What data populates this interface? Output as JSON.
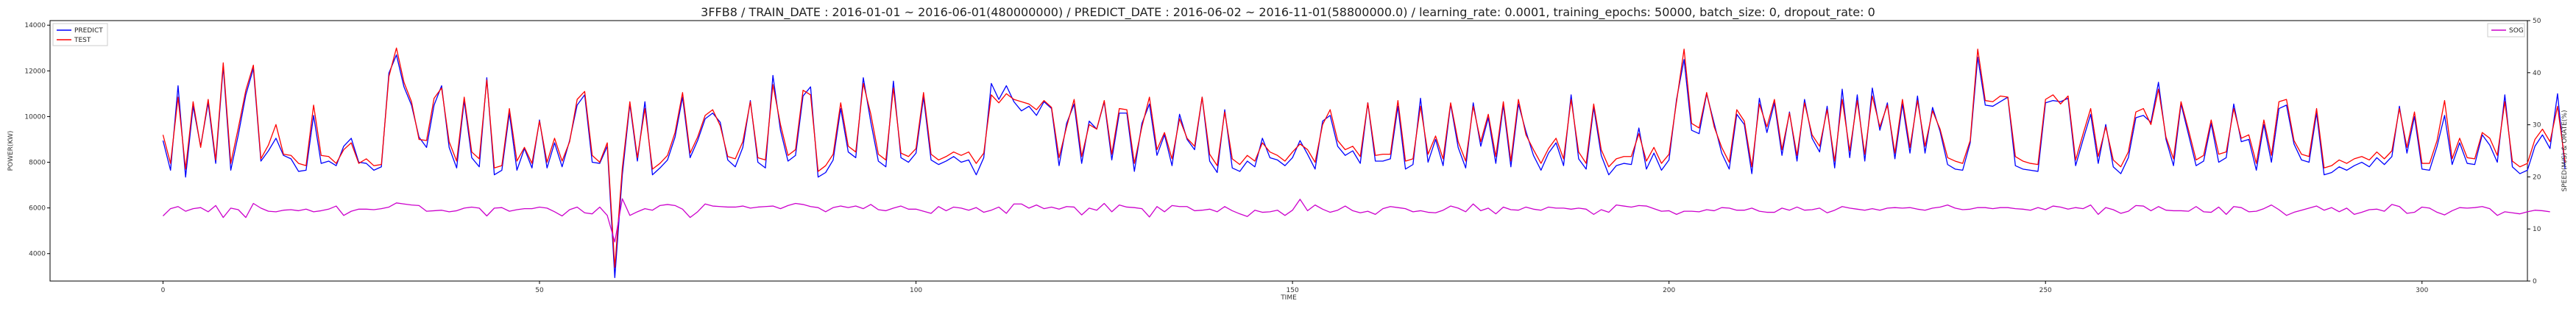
{
  "chart_data": {
    "type": "line",
    "title": "3FFB8 / TRAIN_DATE : 2016-01-01 ~ 2016-06-01(480000000) / PREDICT_DATE : 2016-06-02 ~ 2016-11-01(58800000.0) / learning_rate: 0.0001, training_epochs: 50000, batch_size: 0, dropout_rate: 0",
    "xlabel": "TIME",
    "ylabel_left": "POWER(KW)",
    "ylabel_right": "SPEED(M/S) & ORATE(%)",
    "xlim": [
      -15,
      314
    ],
    "ylim_left": [
      2800,
      14200
    ],
    "ylim_right": [
      0,
      50
    ],
    "x_ticks": [
      "0",
      "50",
      "100",
      "150",
      "200",
      "250",
      "300"
    ],
    "y_ticks_left": [
      "4000",
      "6000",
      "8000",
      "10000",
      "12000",
      "14000"
    ],
    "y_ticks_right": [
      "0",
      "10",
      "20",
      "30",
      "40",
      "50"
    ],
    "grid": false,
    "legend_left": {
      "placement": "top-left",
      "entries": [
        "PREDICT",
        "TEST"
      ]
    },
    "legend_right": {
      "placement": "top-right",
      "entries": [
        "SOG"
      ]
    },
    "colors": {
      "PREDICT": "#0000ff",
      "TEST": "#ff0000",
      "SOG": "#cc00cc"
    },
    "series": [
      {
        "name": "PREDICT",
        "axis": "left",
        "color": "#0000ff",
        "values": [
          8950,
          7650,
          11350,
          7350,
          10450,
          8700,
          10600,
          7950,
          12200,
          7650,
          9200,
          10950,
          12100,
          8050,
          8500,
          9050,
          8300,
          8150,
          7600,
          7650,
          10050,
          7950,
          8050,
          7850,
          8700,
          9050,
          8000,
          7950,
          7650,
          7800,
          11900,
          12700,
          11300,
          10500,
          9100,
          8650,
          10500,
          11350,
          8650,
          7750,
          10700,
          8200,
          7800,
          11700,
          7450,
          7650,
          10150,
          7650,
          8600,
          7750,
          9850,
          7750,
          8850,
          7800,
          8950,
          10500,
          10950,
          8000,
          7950,
          8700,
          2950,
          7450,
          10550,
          8050,
          10650,
          7450,
          7750,
          8100,
          9100,
          10850,
          8200,
          8950,
          9900,
          10150,
          9750,
          8100,
          7800,
          8650,
          10700,
          8000,
          7750,
          11800,
          9400,
          8050,
          8300,
          10900,
          11300,
          7350,
          7550,
          8100,
          10350,
          8450,
          8200,
          11700,
          9750,
          8050,
          7800,
          11550,
          8200,
          8000,
          8400,
          10850,
          8100,
          7900,
          8050,
          8250,
          8000,
          8100,
          7450,
          8200,
          11450,
          10750,
          11350,
          10650,
          10250,
          10450,
          10050,
          10650,
          10350,
          7850,
          9700,
          10550,
          7950,
          9800,
          9450,
          10650,
          8100,
          10150,
          10150,
          7600,
          9700,
          10550,
          8300,
          9200,
          7850,
          10100,
          9000,
          8550,
          10850,
          8050,
          7550,
          10300,
          7750,
          7600,
          8050,
          7800,
          9050,
          8200,
          8100,
          7850,
          8200,
          8950,
          8350,
          7700,
          9800,
          10050,
          8700,
          8300,
          8500,
          7950,
          10600,
          8050,
          8050,
          8150,
          10450,
          7700,
          7900,
          10800,
          8000,
          9000,
          7850,
          10550,
          8650,
          7750,
          10600,
          8700,
          9950,
          7950,
          10500,
          7800,
          10550,
          9350,
          8300,
          7650,
          8400,
          8850,
          7850,
          10950,
          8150,
          7700,
          10400,
          8300,
          7450,
          7850,
          7950,
          7900,
          9500,
          7700,
          8400,
          7650,
          8100,
          10750,
          12500,
          9400,
          9250,
          11000,
          9700,
          8400,
          7700,
          10100,
          9650,
          7500,
          10800,
          9300,
          10600,
          8300,
          10200,
          8050,
          10750,
          9050,
          8450,
          10450,
          7750,
          11200,
          8200,
          10950,
          8050,
          11250,
          9400,
          10600,
          8150,
          10550,
          8400,
          10900,
          8400,
          10400,
          9350,
          7900,
          7700,
          7650,
          8850,
          12600,
          10500,
          10450,
          10650,
          10850,
          7850,
          7700,
          7650,
          7600,
          10600,
          10700,
          10650,
          10800,
          7850,
          9000,
          10100,
          7950,
          9650,
          7800,
          7500,
          8200,
          9950,
          10050,
          9750,
          11500,
          9000,
          7850,
          10550,
          9200,
          7850,
          8050,
          9700,
          8000,
          8200,
          10550,
          8900,
          9000,
          7650,
          9650,
          8000,
          10350,
          10500,
          8800,
          8100,
          8000,
          10150,
          7450,
          7550,
          7800,
          7650,
          7850,
          8000,
          7800,
          8200,
          7900,
          8250,
          10450,
          8400,
          10000,
          7700,
          7650,
          8700,
          10050,
          7900,
          8850,
          7950,
          7900,
          9200,
          8750,
          8000,
          10950,
          7800,
          7500,
          7650,
          8700,
          9200,
          8600,
          11000,
          7700
        ]
      },
      {
        "name": "TEST",
        "axis": "left",
        "color": "#ff0000",
        "values": [
          9200,
          7950,
          10850,
          7700,
          10650,
          8650,
          10750,
          8100,
          12350,
          7950,
          9500,
          11150,
          12250,
          8150,
          8750,
          9650,
          8350,
          8300,
          7950,
          7850,
          10500,
          8300,
          8250,
          7950,
          8550,
          8850,
          7950,
          8150,
          7850,
          7900,
          11750,
          13000,
          11500,
          10650,
          9000,
          8950,
          10800,
          11250,
          8900,
          8050,
          10850,
          8450,
          8150,
          11600,
          7750,
          7850,
          10350,
          8050,
          8650,
          7950,
          9800,
          8000,
          9050,
          8050,
          8900,
          10750,
          11100,
          8300,
          8000,
          8850,
          3400,
          7750,
          10650,
          8200,
          10350,
          7700,
          7950,
          8300,
          9300,
          11050,
          8400,
          9100,
          10050,
          10300,
          9600,
          8250,
          8150,
          8900,
          10650,
          8200,
          8100,
          11400,
          9650,
          8300,
          8550,
          11150,
          10950,
          7600,
          7850,
          8350,
          10600,
          8700,
          8450,
          11450,
          10100,
          8350,
          8100,
          11250,
          8400,
          8250,
          8600,
          11050,
          8350,
          8100,
          8250,
          8450,
          8300,
          8450,
          7950,
          8400,
          10950,
          10600,
          11000,
          10750,
          10650,
          10550,
          10300,
          10700,
          10400,
          8200,
          9550,
          10750,
          8250,
          9650,
          9450,
          10700,
          8350,
          10350,
          10300,
          7950,
          9550,
          10850,
          8550,
          9300,
          8150,
          9900,
          9050,
          8700,
          10850,
          8350,
          7850,
          10200,
          8150,
          7900,
          8300,
          8050,
          8850,
          8450,
          8300,
          8050,
          8450,
          8800,
          8550,
          8000,
          9650,
          10300,
          8950,
          8550,
          8700,
          8250,
          10600,
          8300,
          8350,
          8350,
          10700,
          8050,
          8150,
          10450,
          8350,
          9150,
          8150,
          10600,
          8900,
          8050,
          10450,
          8900,
          10100,
          8250,
          10650,
          8050,
          10750,
          9200,
          8550,
          7950,
          8600,
          9050,
          8150,
          10750,
          8450,
          7950,
          10550,
          8550,
          7800,
          8150,
          8250,
          8250,
          9250,
          8050,
          8650,
          7950,
          8350,
          10650,
          12950,
          9700,
          9500,
          11050,
          9550,
          8650,
          8000,
          10300,
          9800,
          7800,
          10550,
          9550,
          10750,
          8550,
          10150,
          8300,
          10600,
          9200,
          8700,
          10300,
          8050,
          10750,
          8500,
          10700,
          8350,
          10900,
          9550,
          10500,
          8400,
          10750,
          8650,
          10700,
          8700,
          10250,
          9450,
          8200,
          8050,
          7950,
          8950,
          12950,
          10700,
          10650,
          10900,
          10850,
          8250,
          8050,
          7950,
          7900,
          10750,
          10950,
          10550,
          10900,
          8100,
          9250,
          10350,
          8250,
          9550,
          8100,
          7800,
          8450,
          10200,
          10350,
          9650,
          11200,
          9100,
          8150,
          10650,
          9400,
          8100,
          8300,
          9850,
          8350,
          8450,
          10350,
          9050,
          9200,
          7950,
          9850,
          8300,
          10650,
          10750,
          8950,
          8350,
          8250,
          10350,
          7750,
          7850,
          8100,
          7950,
          8150,
          8250,
          8100,
          8450,
          8150,
          8500,
          10350,
          8650,
          10200,
          7950,
          7950,
          8950,
          10700,
          8150,
          9050,
          8200,
          8150,
          9300,
          9050,
          8300,
          10650,
          8050,
          7800,
          7950,
          9000,
          9450,
          8900,
          10450,
          8000
        ]
      },
      {
        "name": "SOG",
        "axis": "right",
        "color": "#cc00cc",
        "values": [
          12.5,
          13.9,
          14.3,
          13.4,
          13.9,
          14.1,
          13.3,
          14.5,
          12.2,
          14.0,
          13.7,
          12.2,
          14.9,
          14.0,
          13.4,
          13.3,
          13.6,
          13.7,
          13.5,
          13.8,
          13.3,
          13.5,
          13.8,
          14.4,
          12.6,
          13.4,
          13.8,
          13.8,
          13.7,
          13.9,
          14.2,
          15.0,
          14.8,
          14.6,
          14.5,
          13.4,
          13.5,
          13.6,
          13.3,
          13.5,
          14.0,
          14.2,
          14.0,
          12.5,
          14.0,
          14.1,
          13.4,
          13.7,
          13.9,
          13.9,
          14.2,
          14.0,
          13.3,
          12.5,
          13.7,
          14.2,
          13.1,
          12.9,
          14.2,
          12.6,
          7.5,
          15.8,
          12.6,
          13.3,
          13.9,
          13.6,
          14.5,
          14.7,
          14.5,
          13.8,
          12.2,
          13.3,
          14.8,
          14.4,
          14.3,
          14.2,
          14.2,
          14.4,
          14.0,
          14.2,
          14.3,
          14.4,
          13.9,
          14.5,
          14.9,
          14.7,
          14.3,
          14.1,
          13.3,
          14.1,
          14.4,
          14.1,
          14.4,
          13.9,
          14.7,
          13.7,
          13.5,
          14.0,
          14.4,
          13.8,
          13.8,
          13.4,
          13.0,
          14.3,
          13.5,
          14.2,
          14.0,
          13.6,
          14.1,
          13.2,
          13.6,
          14.2,
          13.0,
          14.8,
          14.8,
          14.0,
          14.6,
          13.9,
          14.2,
          13.8,
          14.3,
          14.2,
          12.7,
          14.0,
          13.6,
          14.9,
          13.3,
          14.6,
          14.2,
          14.1,
          13.9,
          12.3,
          14.3,
          13.3,
          14.5,
          14.3,
          14.3,
          13.5,
          13.6,
          13.8,
          13.3,
          14.3,
          13.5,
          12.9,
          12.4,
          13.6,
          13.2,
          13.3,
          13.6,
          12.6,
          13.6,
          15.7,
          13.5,
          14.6,
          13.8,
          13.2,
          13.6,
          14.4,
          13.5,
          13.1,
          13.4,
          12.8,
          13.9,
          14.3,
          14.1,
          13.9,
          13.3,
          13.5,
          13.2,
          13.1,
          13.6,
          14.4,
          14.0,
          13.3,
          14.8,
          13.5,
          14.0,
          12.9,
          14.2,
          13.7,
          13.6,
          14.2,
          13.8,
          13.6,
          14.2,
          14.0,
          14.0,
          13.8,
          14.0,
          13.8,
          12.8,
          13.7,
          13.2,
          14.6,
          14.4,
          14.2,
          14.5,
          14.4,
          13.9,
          13.4,
          13.5,
          12.8,
          13.4,
          13.4,
          13.3,
          13.7,
          13.5,
          14.1,
          14.0,
          13.6,
          13.6,
          14.0,
          13.4,
          13.2,
          13.2,
          14.0,
          13.6,
          14.2,
          13.6,
          13.7,
          14.0,
          13.1,
          13.6,
          14.3,
          14.0,
          13.8,
          13.6,
          13.9,
          13.6,
          14.0,
          14.1,
          14.0,
          14.1,
          13.8,
          13.6,
          14.0,
          14.2,
          14.6,
          14.0,
          13.7,
          13.8,
          14.1,
          14.1,
          13.9,
          14.1,
          14.1,
          13.9,
          13.8,
          13.6,
          14.1,
          13.7,
          14.4,
          14.2,
          13.8,
          14.1,
          13.9,
          14.6,
          12.8,
          14.1,
          13.7,
          13.0,
          13.4,
          14.5,
          14.4,
          13.5,
          14.3,
          13.6,
          13.5,
          13.5,
          13.4,
          14.3,
          13.3,
          13.2,
          14.2,
          12.8,
          14.3,
          14.1,
          13.3,
          13.4,
          13.9,
          14.6,
          13.7,
          12.6,
          13.2,
          13.6,
          14.0,
          14.4,
          13.6,
          14.1,
          13.3,
          14.0,
          12.8,
          13.2,
          13.7,
          13.8,
          13.4,
          14.7,
          14.3,
          13.0,
          13.2,
          14.2,
          14.0,
          13.2,
          12.7,
          13.5,
          14.1,
          14.0,
          14.1,
          14.3,
          13.9,
          12.6,
          13.3,
          13.1,
          12.9,
          13.3,
          13.6,
          13.5,
          13.3
        ]
      }
    ]
  }
}
